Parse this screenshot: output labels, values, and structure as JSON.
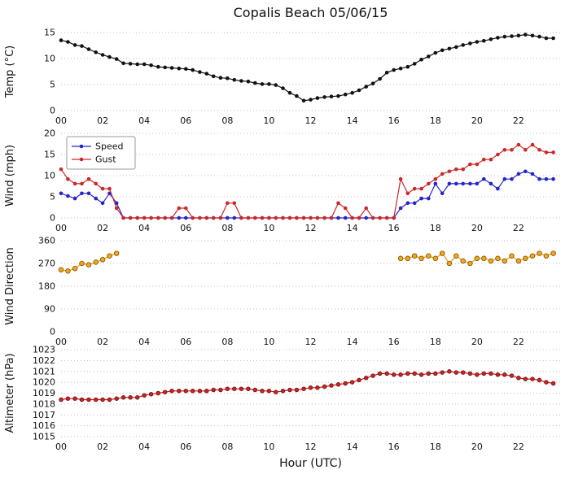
{
  "title": "Copalis Beach 05/06/15",
  "xlabel": "Hour (UTC)",
  "chart_data": {
    "type": "line",
    "title": "Copalis Beach 05/06/15",
    "x_label": "Hour (UTC)",
    "x_range": [
      0,
      24
    ],
    "grid": "horizontal-dotted",
    "x_tick_labels": [
      "00",
      "02",
      "04",
      "06",
      "08",
      "10",
      "12",
      "14",
      "16",
      "18",
      "20",
      "22"
    ],
    "x_hours": [
      0,
      0.33,
      0.67,
      1,
      1.33,
      1.67,
      2,
      2.33,
      2.67,
      3,
      3.33,
      3.67,
      4,
      4.33,
      4.67,
      5,
      5.33,
      5.67,
      6,
      6.33,
      6.67,
      7,
      7.33,
      7.67,
      8,
      8.33,
      8.67,
      9,
      9.33,
      9.67,
      10,
      10.33,
      10.67,
      11,
      11.33,
      11.67,
      12,
      12.33,
      12.67,
      13,
      13.33,
      13.67,
      14,
      14.33,
      14.67,
      15,
      15.33,
      15.67,
      16,
      16.33,
      16.67,
      17,
      17.33,
      17.67,
      18,
      18.33,
      18.67,
      19,
      19.33,
      19.67,
      20,
      20.33,
      20.67,
      21,
      21.33,
      21.67,
      22,
      22.33,
      22.67,
      23,
      23.33,
      23.67
    ],
    "panels": [
      {
        "ylabel": "Temp (°C)",
        "ylim": [
          0,
          15
        ],
        "yticks": [
          0,
          5,
          10,
          15
        ],
        "legend": false,
        "series": [
          {
            "name": "Temp",
            "color": "#111111",
            "marker_fill": "#111111",
            "values": [
              13.5,
              13.2,
              12.6,
              12.4,
              11.8,
              11.2,
              10.7,
              10.3,
              9.9,
              9.1,
              9.0,
              8.9,
              8.9,
              8.7,
              8.4,
              8.3,
              8.2,
              8.1,
              8.0,
              7.8,
              7.4,
              7.1,
              6.6,
              6.3,
              6.2,
              5.9,
              5.7,
              5.6,
              5.3,
              5.1,
              5.1,
              4.9,
              4.3,
              3.4,
              2.8,
              1.9,
              2.1,
              2.4,
              2.6,
              2.7,
              2.8,
              3.1,
              3.4,
              3.9,
              4.6,
              5.2,
              6.1,
              7.3,
              7.8,
              8.1,
              8.4,
              9.0,
              9.8,
              10.4,
              11.1,
              11.6,
              11.9,
              12.2,
              12.6,
              12.9,
              13.2,
              13.4,
              13.7,
              14.0,
              14.2,
              14.3,
              14.4,
              14.6,
              14.4,
              14.2,
              13.9,
              13.9
            ]
          }
        ]
      },
      {
        "ylabel": "Wind (mph)",
        "ylim": [
          0,
          20
        ],
        "yticks": [
          0,
          5,
          10,
          15,
          20
        ],
        "legend": true,
        "series": [
          {
            "name": "Speed",
            "color": "#2424c8",
            "marker_fill": "#2424c8",
            "values": [
              5.8,
              5.2,
              4.6,
              5.8,
              5.8,
              4.6,
              3.5,
              5.8,
              3.5,
              0,
              0,
              0,
              0,
              0,
              0,
              0,
              0,
              0,
              0,
              0,
              0,
              0,
              0,
              0,
              0,
              0,
              0,
              0,
              0,
              0,
              0,
              0,
              0,
              0,
              0,
              0,
              0,
              0,
              0,
              0,
              0,
              0,
              0,
              0,
              0,
              0,
              0,
              0,
              0,
              2.3,
              3.5,
              3.5,
              4.6,
              4.6,
              8.1,
              5.8,
              8.1,
              8.1,
              8.1,
              8.1,
              8.1,
              9.2,
              8.1,
              6.9,
              9.2,
              9.2,
              10.4,
              11.0,
              10.4,
              9.2,
              9.2,
              9.2
            ]
          },
          {
            "name": "Gust",
            "color": "#cc2828",
            "marker_fill": "#cc2828",
            "values": [
              11.5,
              9.2,
              8.1,
              8.1,
              9.2,
              8.1,
              6.9,
              6.9,
              2.3,
              0,
              0,
              0,
              0,
              0,
              0,
              0,
              0,
              2.3,
              2.3,
              0,
              0,
              0,
              0,
              0,
              3.5,
              3.5,
              0,
              0,
              0,
              0,
              0,
              0,
              0,
              0,
              0,
              0,
              0,
              0,
              0,
              0,
              3.5,
              2.3,
              0,
              0,
              2.3,
              0,
              0,
              0,
              0,
              9.2,
              5.8,
              6.9,
              6.9,
              8.1,
              9.2,
              10.4,
              11.0,
              11.5,
              11.5,
              12.7,
              12.7,
              13.8,
              13.8,
              15.0,
              16.1,
              16.1,
              17.3,
              16.1,
              17.3,
              16.1,
              15.5,
              15.5
            ]
          }
        ]
      },
      {
        "ylabel": "Wind Direction",
        "ylim": [
          0,
          360
        ],
        "yticks": [
          0,
          90,
          180,
          270,
          360
        ],
        "legend": false,
        "series": [
          {
            "name": "Direction",
            "color": "#e09a1e",
            "marker_fill": "#f2a71d",
            "marker_stroke": "#8a5a00",
            "marker_radius": 2.8,
            "values": [
              245,
              240,
              250,
              270,
              265,
              275,
              285,
              300,
              310,
              null,
              null,
              null,
              null,
              null,
              null,
              null,
              null,
              null,
              null,
              null,
              null,
              null,
              null,
              null,
              null,
              null,
              null,
              null,
              null,
              null,
              null,
              null,
              null,
              null,
              null,
              null,
              null,
              null,
              null,
              null,
              null,
              null,
              null,
              null,
              null,
              null,
              null,
              null,
              null,
              290,
              290,
              300,
              290,
              300,
              290,
              310,
              270,
              300,
              280,
              270,
              290,
              290,
              280,
              290,
              280,
              300,
              280,
              290,
              300,
              310,
              300,
              310
            ]
          }
        ]
      },
      {
        "ylabel": "Altimeter (hPa)",
        "ylim": [
          1015,
          1023
        ],
        "yticks": [
          1015,
          1016,
          1017,
          1018,
          1019,
          1020,
          1021,
          1022,
          1023
        ],
        "legend": false,
        "series": [
          {
            "name": "Altimeter",
            "color": "#b22222",
            "marker_fill": "#cc2222",
            "marker_stroke": "#7a1414",
            "values": [
              1018.4,
              1018.5,
              1018.5,
              1018.4,
              1018.4,
              1018.4,
              1018.4,
              1018.4,
              1018.5,
              1018.6,
              1018.6,
              1018.6,
              1018.8,
              1018.9,
              1019.0,
              1019.1,
              1019.2,
              1019.2,
              1019.2,
              1019.2,
              1019.2,
              1019.2,
              1019.3,
              1019.3,
              1019.4,
              1019.4,
              1019.4,
              1019.4,
              1019.3,
              1019.2,
              1019.2,
              1019.1,
              1019.2,
              1019.3,
              1019.3,
              1019.4,
              1019.5,
              1019.5,
              1019.6,
              1019.7,
              1019.8,
              1019.9,
              1020.0,
              1020.2,
              1020.4,
              1020.6,
              1020.8,
              1020.8,
              1020.7,
              1020.7,
              1020.8,
              1020.8,
              1020.7,
              1020.8,
              1020.8,
              1020.9,
              1021.0,
              1020.9,
              1020.9,
              1020.8,
              1020.7,
              1020.8,
              1020.8,
              1020.7,
              1020.7,
              1020.6,
              1020.4,
              1020.3,
              1020.3,
              1020.2,
              1020.0,
              1019.9
            ]
          }
        ]
      }
    ]
  }
}
